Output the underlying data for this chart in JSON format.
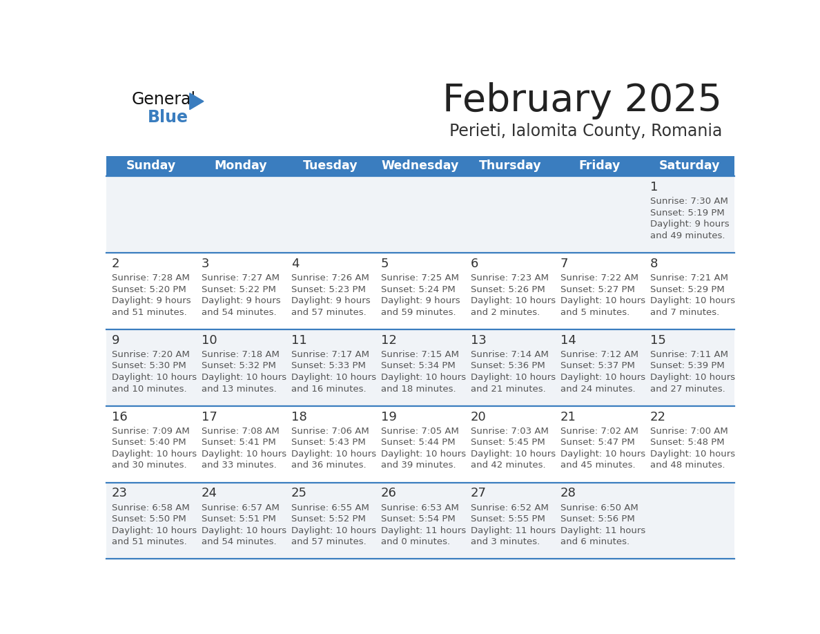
{
  "title": "February 2025",
  "subtitle": "Perieti, Ialomita County, Romania",
  "header_bg_color": "#3a7dbf",
  "header_text_color": "#ffffff",
  "title_color": "#222222",
  "subtitle_color": "#333333",
  "day_names": [
    "Sunday",
    "Monday",
    "Tuesday",
    "Wednesday",
    "Thursday",
    "Friday",
    "Saturday"
  ],
  "cell_bg_even": "#f0f3f7",
  "cell_bg_odd": "#ffffff",
  "separator_color": "#3a7dbf",
  "day_number_color": "#333333",
  "info_text_color": "#555555",
  "logo_general_color": "#111111",
  "logo_blue_color": "#3a7dbf",
  "logo_triangle_color": "#3a7dbf",
  "calendar": [
    [
      null,
      null,
      null,
      null,
      null,
      null,
      {
        "day": 1,
        "sunrise": "7:30 AM",
        "sunset": "5:19 PM",
        "daylight_h": "9 hours",
        "daylight_m": "and 49 minutes."
      }
    ],
    [
      {
        "day": 2,
        "sunrise": "7:28 AM",
        "sunset": "5:20 PM",
        "daylight_h": "9 hours",
        "daylight_m": "and 51 minutes."
      },
      {
        "day": 3,
        "sunrise": "7:27 AM",
        "sunset": "5:22 PM",
        "daylight_h": "9 hours",
        "daylight_m": "and 54 minutes."
      },
      {
        "day": 4,
        "sunrise": "7:26 AM",
        "sunset": "5:23 PM",
        "daylight_h": "9 hours",
        "daylight_m": "and 57 minutes."
      },
      {
        "day": 5,
        "sunrise": "7:25 AM",
        "sunset": "5:24 PM",
        "daylight_h": "9 hours",
        "daylight_m": "and 59 minutes."
      },
      {
        "day": 6,
        "sunrise": "7:23 AM",
        "sunset": "5:26 PM",
        "daylight_h": "10 hours",
        "daylight_m": "and 2 minutes."
      },
      {
        "day": 7,
        "sunrise": "7:22 AM",
        "sunset": "5:27 PM",
        "daylight_h": "10 hours",
        "daylight_m": "and 5 minutes."
      },
      {
        "day": 8,
        "sunrise": "7:21 AM",
        "sunset": "5:29 PM",
        "daylight_h": "10 hours",
        "daylight_m": "and 7 minutes."
      }
    ],
    [
      {
        "day": 9,
        "sunrise": "7:20 AM",
        "sunset": "5:30 PM",
        "daylight_h": "10 hours",
        "daylight_m": "and 10 minutes."
      },
      {
        "day": 10,
        "sunrise": "7:18 AM",
        "sunset": "5:32 PM",
        "daylight_h": "10 hours",
        "daylight_m": "and 13 minutes."
      },
      {
        "day": 11,
        "sunrise": "7:17 AM",
        "sunset": "5:33 PM",
        "daylight_h": "10 hours",
        "daylight_m": "and 16 minutes."
      },
      {
        "day": 12,
        "sunrise": "7:15 AM",
        "sunset": "5:34 PM",
        "daylight_h": "10 hours",
        "daylight_m": "and 18 minutes."
      },
      {
        "day": 13,
        "sunrise": "7:14 AM",
        "sunset": "5:36 PM",
        "daylight_h": "10 hours",
        "daylight_m": "and 21 minutes."
      },
      {
        "day": 14,
        "sunrise": "7:12 AM",
        "sunset": "5:37 PM",
        "daylight_h": "10 hours",
        "daylight_m": "and 24 minutes."
      },
      {
        "day": 15,
        "sunrise": "7:11 AM",
        "sunset": "5:39 PM",
        "daylight_h": "10 hours",
        "daylight_m": "and 27 minutes."
      }
    ],
    [
      {
        "day": 16,
        "sunrise": "7:09 AM",
        "sunset": "5:40 PM",
        "daylight_h": "10 hours",
        "daylight_m": "and 30 minutes."
      },
      {
        "day": 17,
        "sunrise": "7:08 AM",
        "sunset": "5:41 PM",
        "daylight_h": "10 hours",
        "daylight_m": "and 33 minutes."
      },
      {
        "day": 18,
        "sunrise": "7:06 AM",
        "sunset": "5:43 PM",
        "daylight_h": "10 hours",
        "daylight_m": "and 36 minutes."
      },
      {
        "day": 19,
        "sunrise": "7:05 AM",
        "sunset": "5:44 PM",
        "daylight_h": "10 hours",
        "daylight_m": "and 39 minutes."
      },
      {
        "day": 20,
        "sunrise": "7:03 AM",
        "sunset": "5:45 PM",
        "daylight_h": "10 hours",
        "daylight_m": "and 42 minutes."
      },
      {
        "day": 21,
        "sunrise": "7:02 AM",
        "sunset": "5:47 PM",
        "daylight_h": "10 hours",
        "daylight_m": "and 45 minutes."
      },
      {
        "day": 22,
        "sunrise": "7:00 AM",
        "sunset": "5:48 PM",
        "daylight_h": "10 hours",
        "daylight_m": "and 48 minutes."
      }
    ],
    [
      {
        "day": 23,
        "sunrise": "6:58 AM",
        "sunset": "5:50 PM",
        "daylight_h": "10 hours",
        "daylight_m": "and 51 minutes."
      },
      {
        "day": 24,
        "sunrise": "6:57 AM",
        "sunset": "5:51 PM",
        "daylight_h": "10 hours",
        "daylight_m": "and 54 minutes."
      },
      {
        "day": 25,
        "sunrise": "6:55 AM",
        "sunset": "5:52 PM",
        "daylight_h": "10 hours",
        "daylight_m": "and 57 minutes."
      },
      {
        "day": 26,
        "sunrise": "6:53 AM",
        "sunset": "5:54 PM",
        "daylight_h": "11 hours",
        "daylight_m": "and 0 minutes."
      },
      {
        "day": 27,
        "sunrise": "6:52 AM",
        "sunset": "5:55 PM",
        "daylight_h": "11 hours",
        "daylight_m": "and 3 minutes."
      },
      {
        "day": 28,
        "sunrise": "6:50 AM",
        "sunset": "5:56 PM",
        "daylight_h": "11 hours",
        "daylight_m": "and 6 minutes."
      },
      null
    ]
  ]
}
